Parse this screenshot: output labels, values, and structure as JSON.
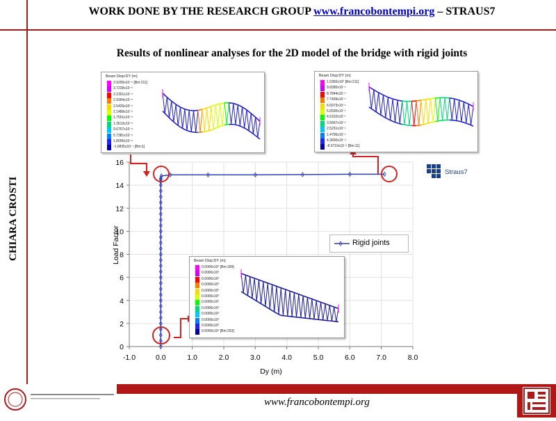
{
  "header": {
    "prefix": "WORK DONE BY THE RESEARCH GROUP",
    "link": "www.francobontempi.org",
    "suffix": "– STRAUS7"
  },
  "side_author": "CHIARA CROSTI",
  "slide_title": "Results of nonlinear analyses for the 2D model of the bridge with rigid joints",
  "footer": {
    "url": "www.francobontempi.org"
  },
  "straus_logo": "Straus7",
  "colors": {
    "brand_red": "#b01818",
    "series_blue": "#2e3fb5",
    "circle_red": "#d42020"
  },
  "insets": [
    {
      "title": "Beam Disp:DY  (m)",
      "labels": [
        "3.9200x10⁻⁵ [Bm:211]",
        "3.7239x10⁻⁵",
        "3.2301x10⁻⁵",
        "2.9364x10⁻⁵",
        "2.5426x10⁻⁵",
        "2.1489x10⁻⁵",
        "1.7551x10⁻⁵",
        "1.3613x10⁻⁵",
        "9.6757x10⁻⁶",
        "5.7381x10⁻⁶",
        "1.8005x10⁻⁶",
        "-1.6835x10⁻⁷ [Bm:1]"
      ]
    },
    {
      "title": "Beam Disp:DY  (m)",
      "labels": [
        "1.0350x10⁰ [Bm:211]",
        "9.8280x10⁻¹",
        "8.7844x10⁻¹",
        "7.7409x10⁻¹",
        "6.6973x10⁻¹",
        "5.6530x10⁻¹",
        "4.6102x10⁻¹",
        "3.5667x10⁻¹",
        "2.5231x10⁻¹",
        "1.4796x10⁻¹",
        "4.3600x10⁻²",
        "-8.5719x10⁻² [Bm:11]"
      ]
    },
    {
      "title": "Beam Disp:DY  (m)",
      "labels": [
        "0.0000x10⁰ [Bm:189]",
        "0.0000x10⁰",
        "0.0000x10⁰",
        "0.0000x10⁰",
        "0.0000x10⁰",
        "0.0000x10⁰",
        "0.0000x10⁰",
        "0.0000x10⁰",
        "0.0000x10⁰",
        "0.0000x10⁰",
        "0.0000x10⁰",
        "0.0000x10⁰ [Bm:293]"
      ]
    }
  ],
  "chart_data": {
    "type": "line",
    "title": "",
    "xlabel": "Dy (m)",
    "ylabel": "Load Factor",
    "xlim": [
      -1.0,
      8.0
    ],
    "ylim": [
      0,
      16
    ],
    "xticks": [
      "-1.0",
      "0.0",
      "1.0",
      "2.0",
      "3.0",
      "4.0",
      "5.0",
      "6.0",
      "7.0",
      "8.0"
    ],
    "yticks": [
      "0",
      "2",
      "4",
      "6",
      "8",
      "10",
      "12",
      "14",
      "16"
    ],
    "grid": true,
    "legend_placement": "right",
    "series": [
      {
        "name": "Rigid joints",
        "x": [
          0,
          0,
          0,
          0,
          0,
          0,
          0,
          0,
          0,
          0,
          0,
          0,
          0,
          0,
          0,
          0,
          0,
          0,
          0,
          0,
          0,
          0,
          0,
          0,
          0,
          0,
          0,
          0,
          0,
          0,
          0,
          0,
          0.02,
          0.3,
          1.5,
          3.0,
          4.5,
          6.0,
          7.1
        ],
        "y": [
          0,
          0.5,
          1.0,
          1.5,
          2.0,
          2.5,
          3.0,
          3.5,
          4.0,
          4.5,
          5.0,
          5.5,
          6.0,
          6.5,
          7.0,
          7.5,
          8.0,
          8.5,
          9.0,
          9.5,
          10.0,
          10.5,
          11.0,
          11.5,
          12.0,
          12.5,
          13.0,
          13.5,
          14.0,
          14.3,
          14.5,
          14.6,
          14.8,
          14.9,
          14.9,
          14.9,
          14.92,
          14.95,
          14.95
        ]
      }
    ]
  }
}
